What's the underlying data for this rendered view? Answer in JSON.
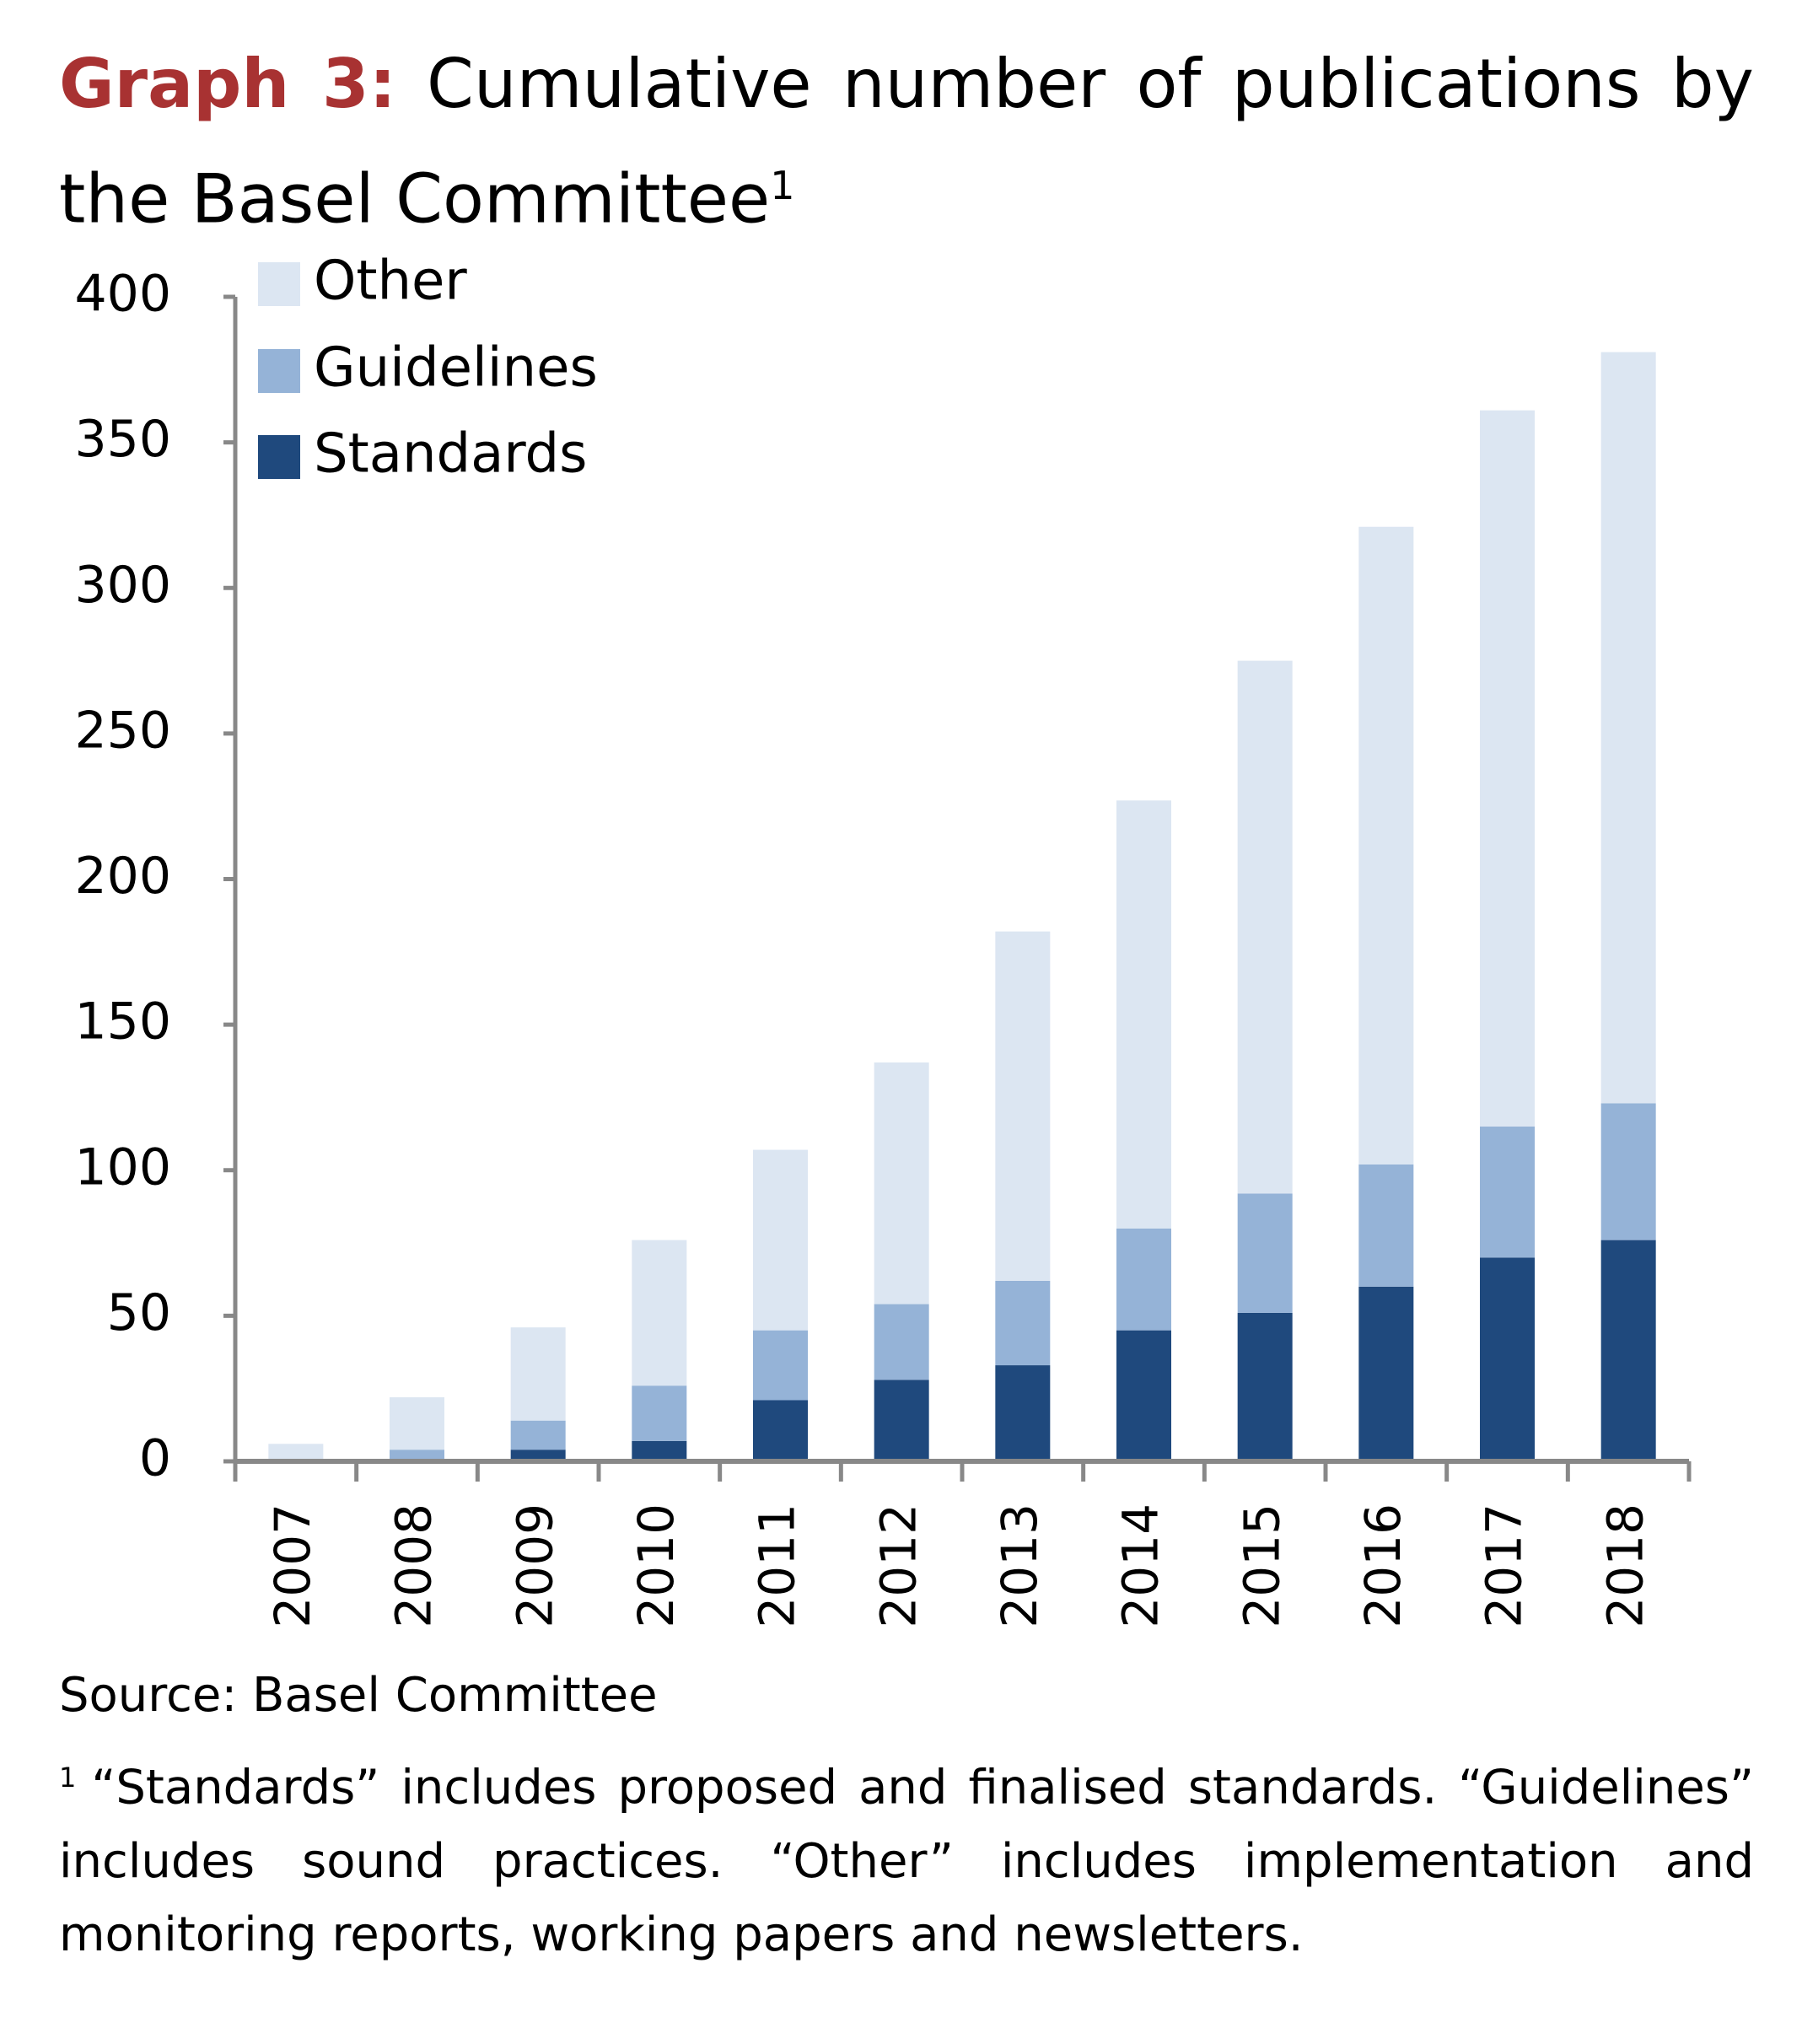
{
  "title": {
    "label": "Graph 3:",
    "text": "Cumulative number of publications by the Basel Committee",
    "footnote_marker": "1"
  },
  "source": "Source: Basel Committee",
  "footnote": {
    "marker": "1",
    "text": "“Standards” includes proposed and finalised standards. “Guidelines” includes sound practices. “Other” includes implementation and monitoring reports, working papers and newsletters."
  },
  "chart_data": {
    "type": "bar",
    "stacked": true,
    "title": "Cumulative number of publications by the Basel Committee",
    "xlabel": "",
    "ylabel": "",
    "categories": [
      "2007",
      "2008",
      "2009",
      "2010",
      "2011",
      "2012",
      "2013",
      "2014",
      "2015",
      "2016",
      "2017",
      "2018"
    ],
    "series": [
      {
        "name": "Standards",
        "color": "#1f497d",
        "values": [
          0,
          0,
          4,
          7,
          21,
          28,
          33,
          45,
          51,
          60,
          70,
          76
        ]
      },
      {
        "name": "Guidelines",
        "color": "#95b3d7",
        "values": [
          0,
          4,
          10,
          19,
          24,
          26,
          29,
          35,
          41,
          42,
          45,
          47
        ]
      },
      {
        "name": "Other",
        "color": "#dce6f2",
        "values": [
          6,
          18,
          32,
          50,
          62,
          83,
          120,
          147,
          183,
          219,
          246,
          258
        ]
      }
    ],
    "ylim": [
      0,
      400
    ],
    "yticks": [
      0,
      50,
      100,
      150,
      200,
      250,
      300,
      350,
      400
    ],
    "grid": false,
    "legend": {
      "position": "top-left",
      "order": [
        "Other",
        "Guidelines",
        "Standards"
      ]
    },
    "axis_color": "#888888"
  }
}
